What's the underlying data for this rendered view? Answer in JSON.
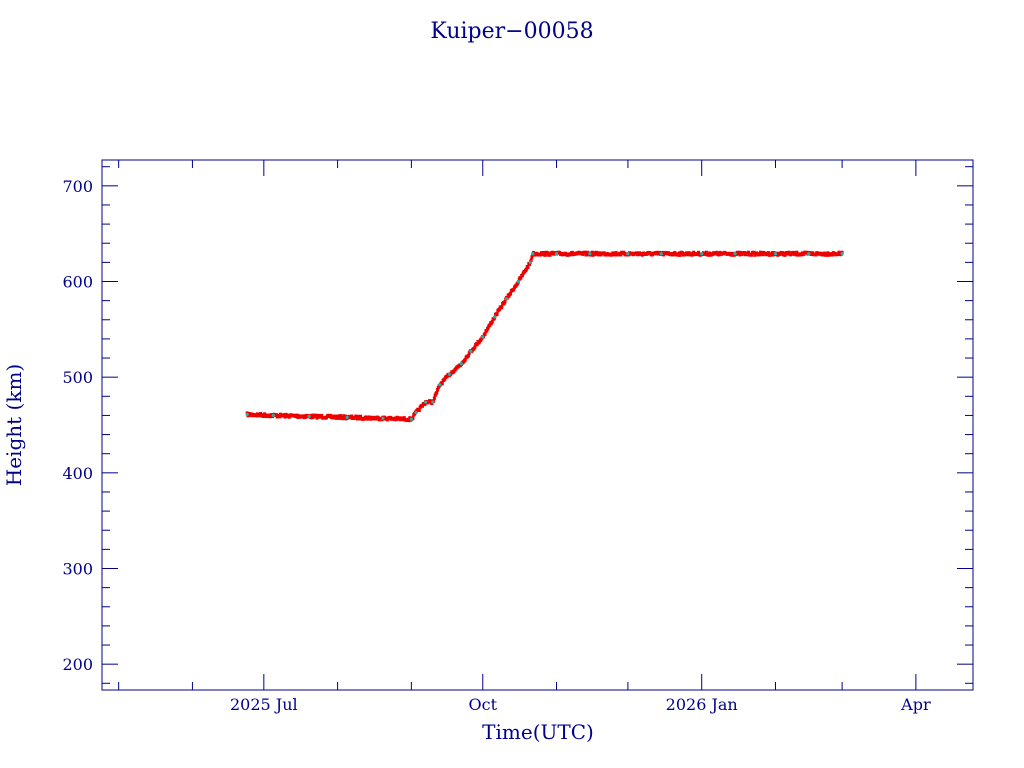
{
  "chart_data": {
    "type": "scatter",
    "title": "Kuiper−00058",
    "xlabel": "Time(UTC)",
    "ylabel": "Height (km)",
    "x_ticks": [
      {
        "label": "2025 Jul",
        "date": "2025-07-01"
      },
      {
        "label": "Oct",
        "date": "2025-10-01"
      },
      {
        "label": "2026 Jan",
        "date": "2026-01-01"
      },
      {
        "label": "Apr",
        "date": "2026-04-01"
      }
    ],
    "y_ticks": [
      200,
      300,
      400,
      500,
      600,
      700
    ],
    "xlim": [
      "2025-04-24",
      "2026-04-25"
    ],
    "ylim": [
      173,
      727
    ],
    "grid": false,
    "colors": {
      "axes": "#00008b",
      "series": "#ee0000",
      "series_accent": "#20b2aa"
    },
    "series": [
      {
        "x": [
          "2025-06-24",
          "2025-07-05",
          "2025-07-20",
          "2025-08-05",
          "2025-08-20",
          "2025-09-01",
          "2025-09-03",
          "2025-09-07",
          "2025-09-10",
          "2025-09-13",
          "2025-09-17",
          "2025-09-22",
          "2025-09-26",
          "2025-10-01",
          "2025-10-06",
          "2025-10-11",
          "2025-10-16",
          "2025-10-21",
          "2025-10-22",
          "2025-11-01",
          "2025-11-15",
          "2025-12-01",
          "2025-12-15",
          "2026-01-01",
          "2026-01-15",
          "2026-02-01",
          "2026-02-15",
          "2026-03-01"
        ],
        "y": [
          461,
          460,
          459,
          458,
          457,
          456,
          463,
          474,
          474,
          492,
          503,
          514,
          527,
          542,
          563,
          582,
          600,
          620,
          629,
          629,
          629,
          629,
          629,
          629,
          629,
          629,
          629,
          629
        ]
      }
    ]
  }
}
